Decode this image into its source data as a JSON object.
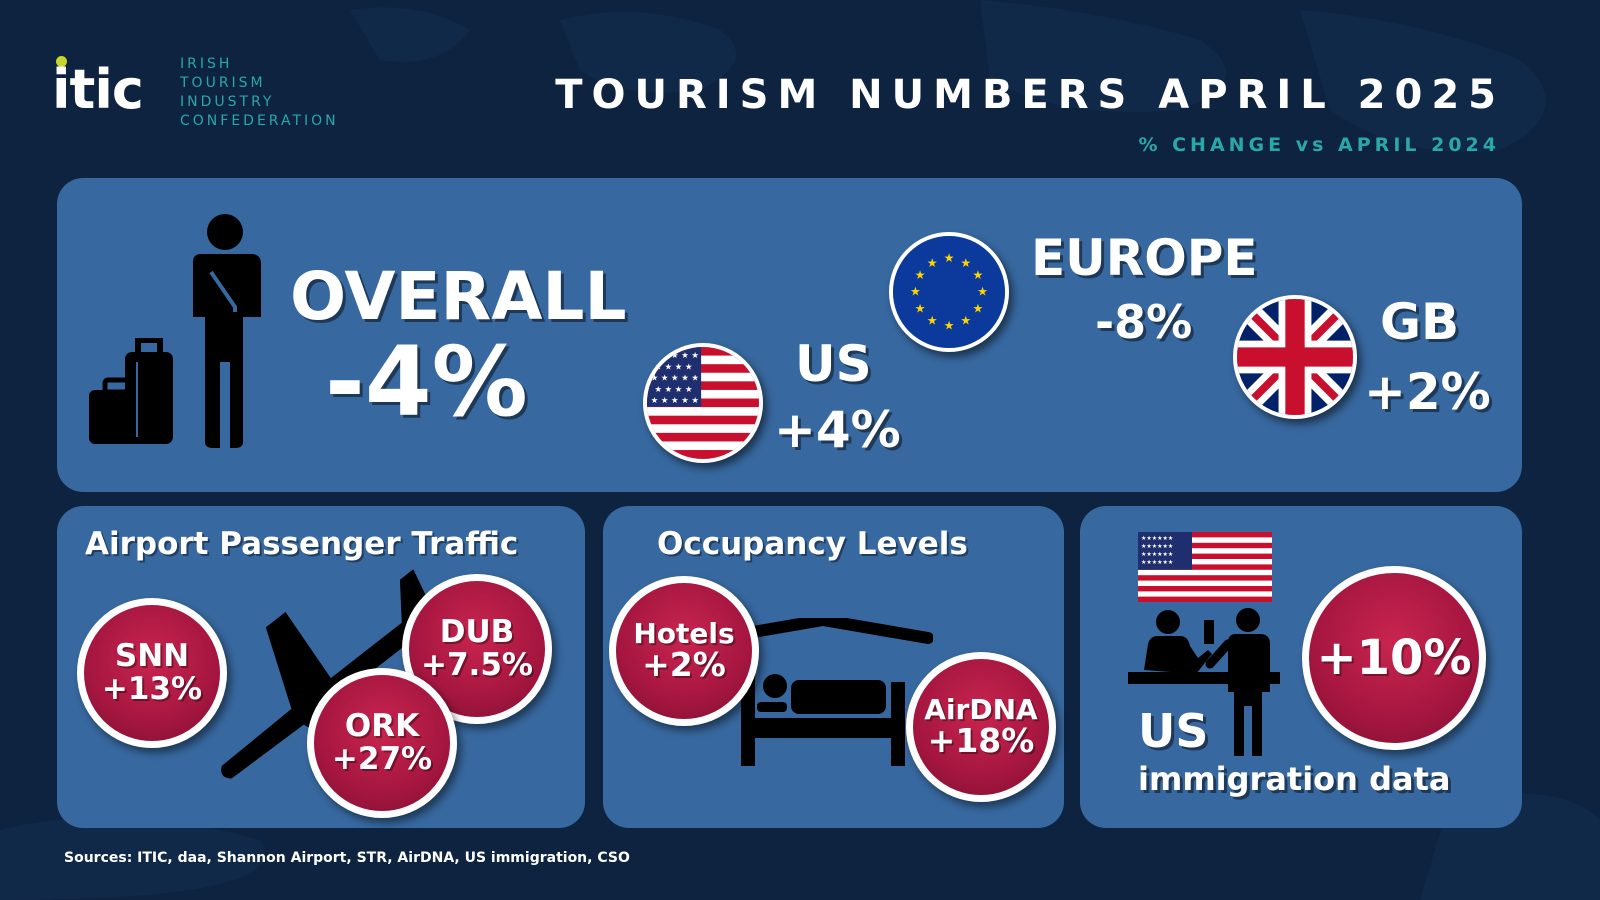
{
  "logo": {
    "mark": "itic",
    "line1": "IRISH",
    "line2": "TOURISM",
    "line3": "INDUSTRY",
    "line4": "CONFEDERATION"
  },
  "header": {
    "title": "TOURISM NUMBERS APRIL 2025",
    "subtitle": "% CHANGE vs APRIL 2024"
  },
  "overall": {
    "label": "OVERALL",
    "value": "-4%"
  },
  "markets": {
    "us": {
      "label": "US",
      "value": "+4%"
    },
    "europe": {
      "label": "EUROPE",
      "value": "-8%"
    },
    "gb": {
      "label": "GB",
      "value": "+2%"
    }
  },
  "airport": {
    "title": "Airport Passenger Traffic",
    "snn": {
      "code": "SNN",
      "value": "+13%"
    },
    "dub": {
      "code": "DUB",
      "value": "+7.5%"
    },
    "ork": {
      "code": "ORK",
      "value": "+27%"
    }
  },
  "occupancy": {
    "title": "Occupancy Levels",
    "hotels": {
      "label": "Hotels",
      "value": "+2%"
    },
    "airdna": {
      "label": "AirDNA",
      "value": "+18%"
    }
  },
  "immigration": {
    "value": "+10%",
    "label_us": "US",
    "label_rest": "immigration data"
  },
  "sources": "Sources: ITIC, daa, Shannon Airport, STR, AirDNA, US immigration, CSO",
  "colors": {
    "background": "#0d2340",
    "panel": "#37689f",
    "bubble": "#a51640",
    "accent": "#2aa7a8",
    "logo_dot": "#c8d62b"
  }
}
